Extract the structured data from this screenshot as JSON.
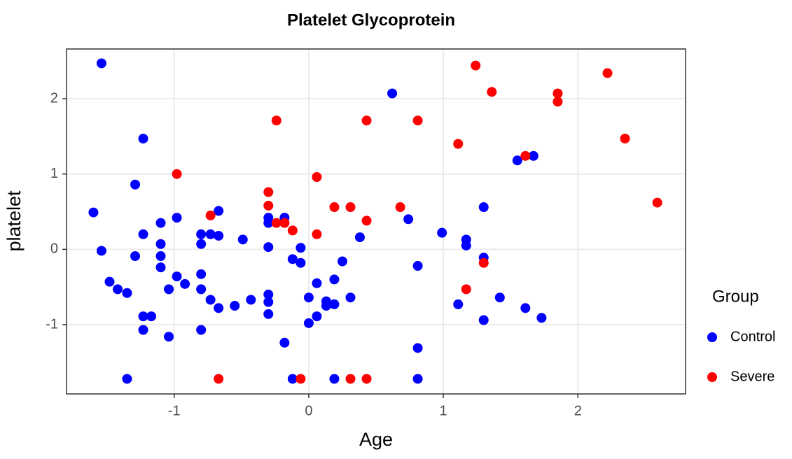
{
  "chart_data": {
    "type": "scatter",
    "title": "Platelet Glycoprotein",
    "x_label": "Age",
    "y_label": "platelet",
    "xlim": [
      -1.8,
      2.8
    ],
    "ylim": [
      -1.92,
      2.66
    ],
    "xticks": [
      -1,
      0,
      1,
      2
    ],
    "yticks": [
      -1,
      0,
      1,
      2
    ],
    "grid": true,
    "legend_title": "Group",
    "legend_position": "right",
    "series": [
      {
        "name": "Control",
        "color": "#0000ff",
        "x": [
          -1.54,
          -1.6,
          -1.54,
          -1.23,
          -1.29,
          -1.23,
          -1.1,
          -1.1,
          -1.1,
          -1.1,
          -1.29,
          -1.48,
          -1.42,
          -1.35,
          -1.23,
          -1.17,
          -1.23,
          -1.04,
          -1.04,
          -0.98,
          -0.98,
          -0.92,
          -1.35,
          -0.8,
          -0.73,
          -0.67,
          -0.67,
          -0.8,
          -0.8,
          -0.8,
          -0.73,
          -0.67,
          -0.8,
          -0.55,
          -0.49,
          -0.43,
          -0.3,
          -0.3,
          -0.3,
          -0.3,
          -0.3,
          -0.3,
          -0.18,
          -0.12,
          -0.06,
          -0.06,
          -0.18,
          -0.12,
          0.0,
          0.0,
          0.06,
          0.06,
          0.13,
          0.13,
          0.19,
          0.19,
          0.25,
          0.31,
          0.38,
          0.19,
          0.62,
          0.74,
          0.81,
          0.81,
          0.81,
          0.99,
          1.11,
          1.17,
          1.17,
          1.3,
          1.3,
          1.3,
          1.42,
          1.55,
          1.67,
          1.61,
          1.73
        ],
        "values": [
          2.47,
          0.49,
          -0.02,
          1.47,
          0.86,
          0.2,
          0.35,
          0.07,
          -0.09,
          -0.24,
          -0.09,
          -0.43,
          -0.53,
          -0.58,
          -0.89,
          -0.89,
          -1.07,
          -1.16,
          -0.53,
          0.42,
          -0.36,
          -0.46,
          -1.72,
          0.2,
          0.2,
          0.18,
          0.51,
          0.07,
          -0.33,
          -0.53,
          -0.67,
          -0.78,
          -1.07,
          -0.75,
          0.13,
          -0.67,
          0.42,
          0.35,
          0.03,
          -0.6,
          -0.7,
          -0.86,
          0.42,
          -0.13,
          0.02,
          -0.18,
          -1.24,
          -1.72,
          -0.64,
          -0.98,
          -0.45,
          -0.89,
          -0.69,
          -0.75,
          -0.73,
          -0.4,
          -0.16,
          -0.64,
          0.16,
          -1.72,
          2.07,
          0.4,
          -0.22,
          -1.31,
          -1.72,
          0.22,
          -0.73,
          0.13,
          0.05,
          0.56,
          -0.11,
          -0.94,
          -0.64,
          1.18,
          1.24,
          -0.78,
          -0.91
        ]
      },
      {
        "name": "Severe",
        "color": "#ff0000",
        "x": [
          1.24,
          1.36,
          1.85,
          1.85,
          2.22,
          2.35,
          2.59,
          -0.24,
          0.43,
          0.81,
          1.11,
          1.61,
          -0.98,
          0.06,
          -0.3,
          -0.3,
          -0.73,
          -0.24,
          -0.18,
          -0.12,
          0.06,
          0.19,
          0.31,
          0.68,
          0.43,
          1.3,
          1.17,
          -0.67,
          -0.06,
          0.31,
          0.43
        ],
        "values": [
          2.44,
          2.09,
          2.07,
          1.96,
          2.34,
          1.47,
          0.62,
          1.71,
          1.71,
          1.71,
          1.4,
          1.24,
          1.0,
          0.96,
          0.76,
          0.58,
          0.45,
          0.35,
          0.35,
          0.25,
          0.2,
          0.56,
          0.56,
          0.56,
          0.38,
          -0.18,
          -0.53,
          -1.72,
          -1.72,
          -1.72,
          -1.72
        ]
      }
    ]
  }
}
